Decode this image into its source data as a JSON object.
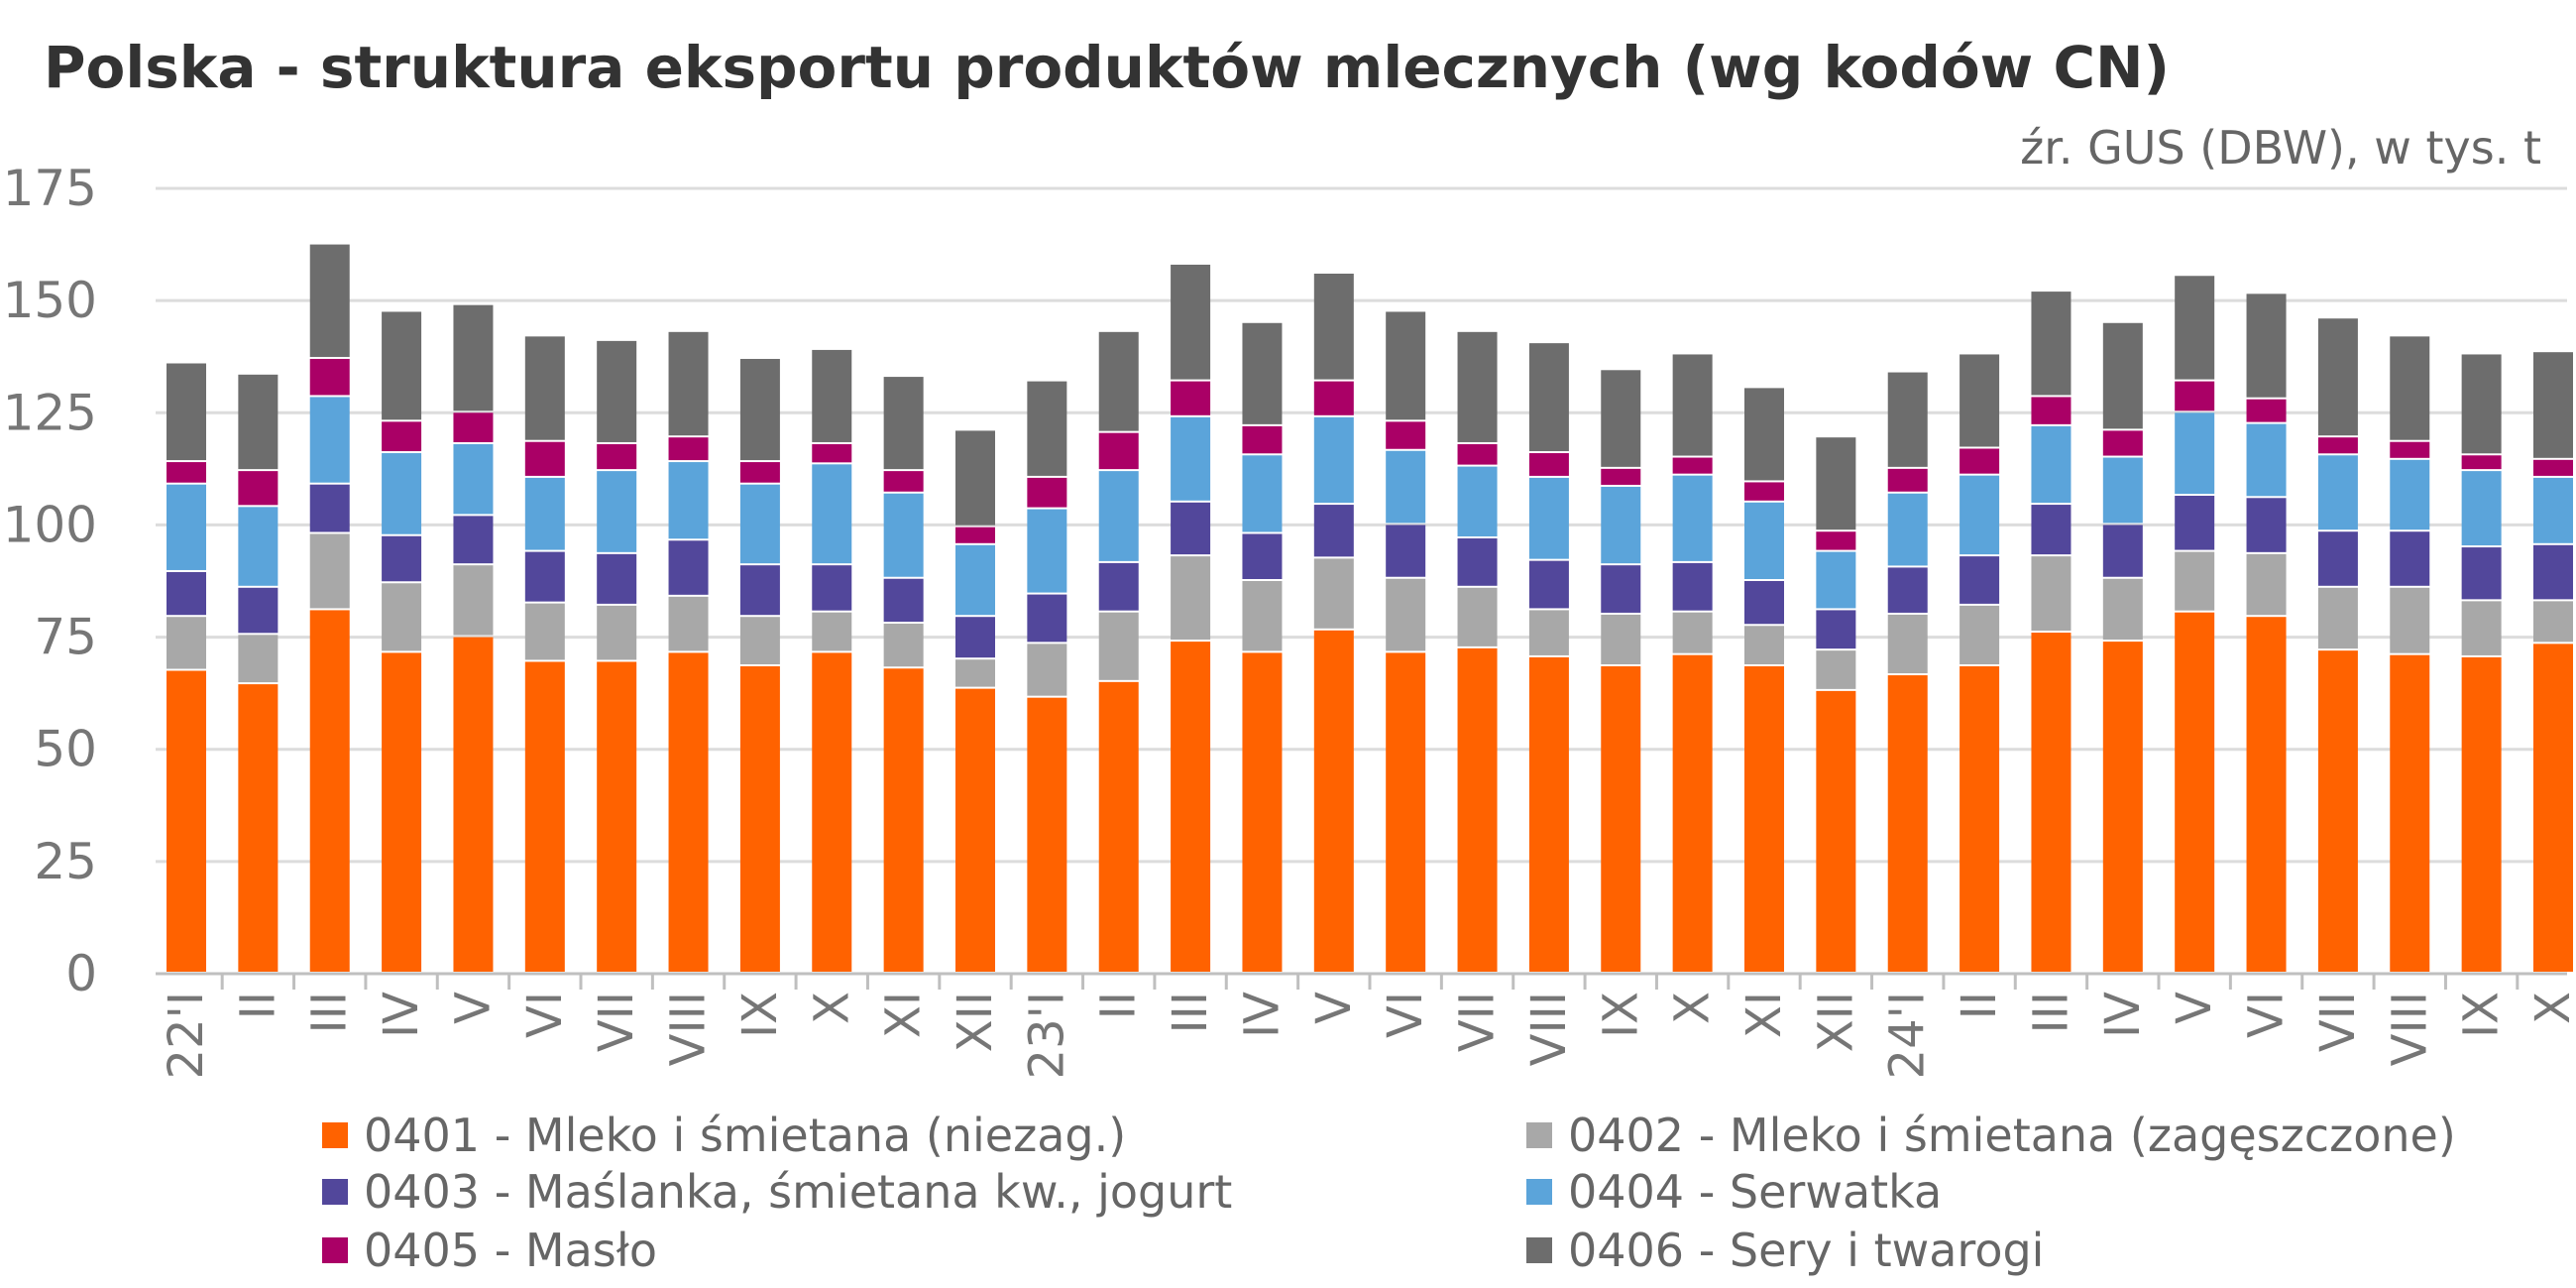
{
  "title": "Polska - struktura eksportu produktów mlecznych (wg kodów CN)",
  "source": "źr. GUS (DBW), w tys. t",
  "colors": {
    "0401": "#FF6200",
    "0402": "#A8A8A8",
    "0403": "#52479B",
    "0404": "#5BA4DA",
    "0405": "#AA0066",
    "0406": "#6D6D6D",
    "grid": "#DCDCDC",
    "axis_text": "#767676"
  },
  "chart_data": {
    "type": "bar",
    "stacked": true,
    "ylim": [
      0,
      175
    ],
    "yticks": [
      0,
      25,
      50,
      75,
      100,
      125,
      150,
      175
    ],
    "grid": true,
    "legend_position": "bottom",
    "categories": [
      "22'I",
      "II",
      "III",
      "IV",
      "V",
      "VI",
      "VII",
      "VIII",
      "IX",
      "X",
      "XI",
      "XII",
      "23'I",
      "II",
      "III",
      "IV",
      "V",
      "VI",
      "VII",
      "VIII",
      "IX",
      "X",
      "XI",
      "XII",
      "24'I",
      "II",
      "III",
      "IV",
      "V",
      "VI",
      "VII",
      "VIII",
      "IX",
      "X"
    ],
    "series": [
      {
        "name": "0401 - Mleko i śmietana (niezag.)",
        "code": "0401",
        "values": [
          67.5,
          64.5,
          81,
          71.5,
          75,
          69.5,
          69.5,
          71.5,
          68.5,
          71.5,
          68,
          63.5,
          61.5,
          65,
          74,
          71.5,
          76.5,
          71.5,
          72.5,
          70.5,
          68.5,
          71,
          68.5,
          63,
          66.5,
          68.5,
          76,
          74,
          80.5,
          79.5,
          72,
          71,
          70.5,
          73.5
        ]
      },
      {
        "name": "0402 - Mleko i śmietana (zagęszczone)",
        "code": "0402",
        "values": [
          12,
          11,
          17,
          15.5,
          16,
          13,
          12.5,
          12.5,
          11,
          9,
          10,
          6.5,
          12,
          15.5,
          19,
          16,
          16,
          16.5,
          13.5,
          10.5,
          11.5,
          9.5,
          9,
          9,
          13.5,
          13.5,
          17,
          14,
          13.5,
          14,
          14,
          15,
          12.5,
          9.5
        ]
      },
      {
        "name": "0403 - Maślanka, śmietana kw., jogurt",
        "code": "0403",
        "values": [
          10,
          10.5,
          11,
          10.5,
          11,
          11.5,
          11.5,
          12.5,
          11.5,
          10.5,
          10,
          9.5,
          11,
          11,
          12,
          10.5,
          12,
          12,
          11,
          11,
          11,
          11,
          10,
          9,
          10.5,
          11,
          11.5,
          12,
          12.5,
          12.5,
          12.5,
          12.5,
          12,
          12.5
        ]
      },
      {
        "name": "0404 - Serwatka",
        "code": "0404",
        "values": [
          19.5,
          18,
          19.5,
          18.5,
          16,
          16.5,
          18.5,
          17.5,
          18,
          22.5,
          19,
          16,
          19,
          20.5,
          19,
          17.5,
          19.5,
          16.5,
          16,
          18.5,
          17.5,
          19.5,
          17.5,
          13,
          16.5,
          18,
          17.5,
          15,
          18.5,
          16.5,
          17,
          16,
          17,
          15
        ]
      },
      {
        "name": "0405 - Masło",
        "code": "0405",
        "values": [
          5,
          8,
          8.5,
          7,
          7,
          8,
          6,
          5.5,
          5,
          4.5,
          5,
          4,
          7,
          8.5,
          8,
          6.5,
          8,
          6.5,
          5,
          5.5,
          4,
          4,
          4.5,
          4.5,
          5.5,
          6,
          6.5,
          6,
          7,
          5.5,
          4,
          4,
          3.5,
          4
        ]
      },
      {
        "name": "0406 - Sery i twarogi",
        "code": "0406",
        "values": [
          22,
          21.5,
          25.5,
          24.5,
          24,
          23.5,
          23,
          23.5,
          23,
          21,
          21,
          21.5,
          21.5,
          22.5,
          26,
          23,
          24,
          24.5,
          25,
          24.5,
          22,
          23,
          21,
          21,
          21.5,
          21,
          23.5,
          24,
          23.5,
          23.5,
          26.5,
          23.5,
          22.5,
          24
        ]
      }
    ]
  }
}
